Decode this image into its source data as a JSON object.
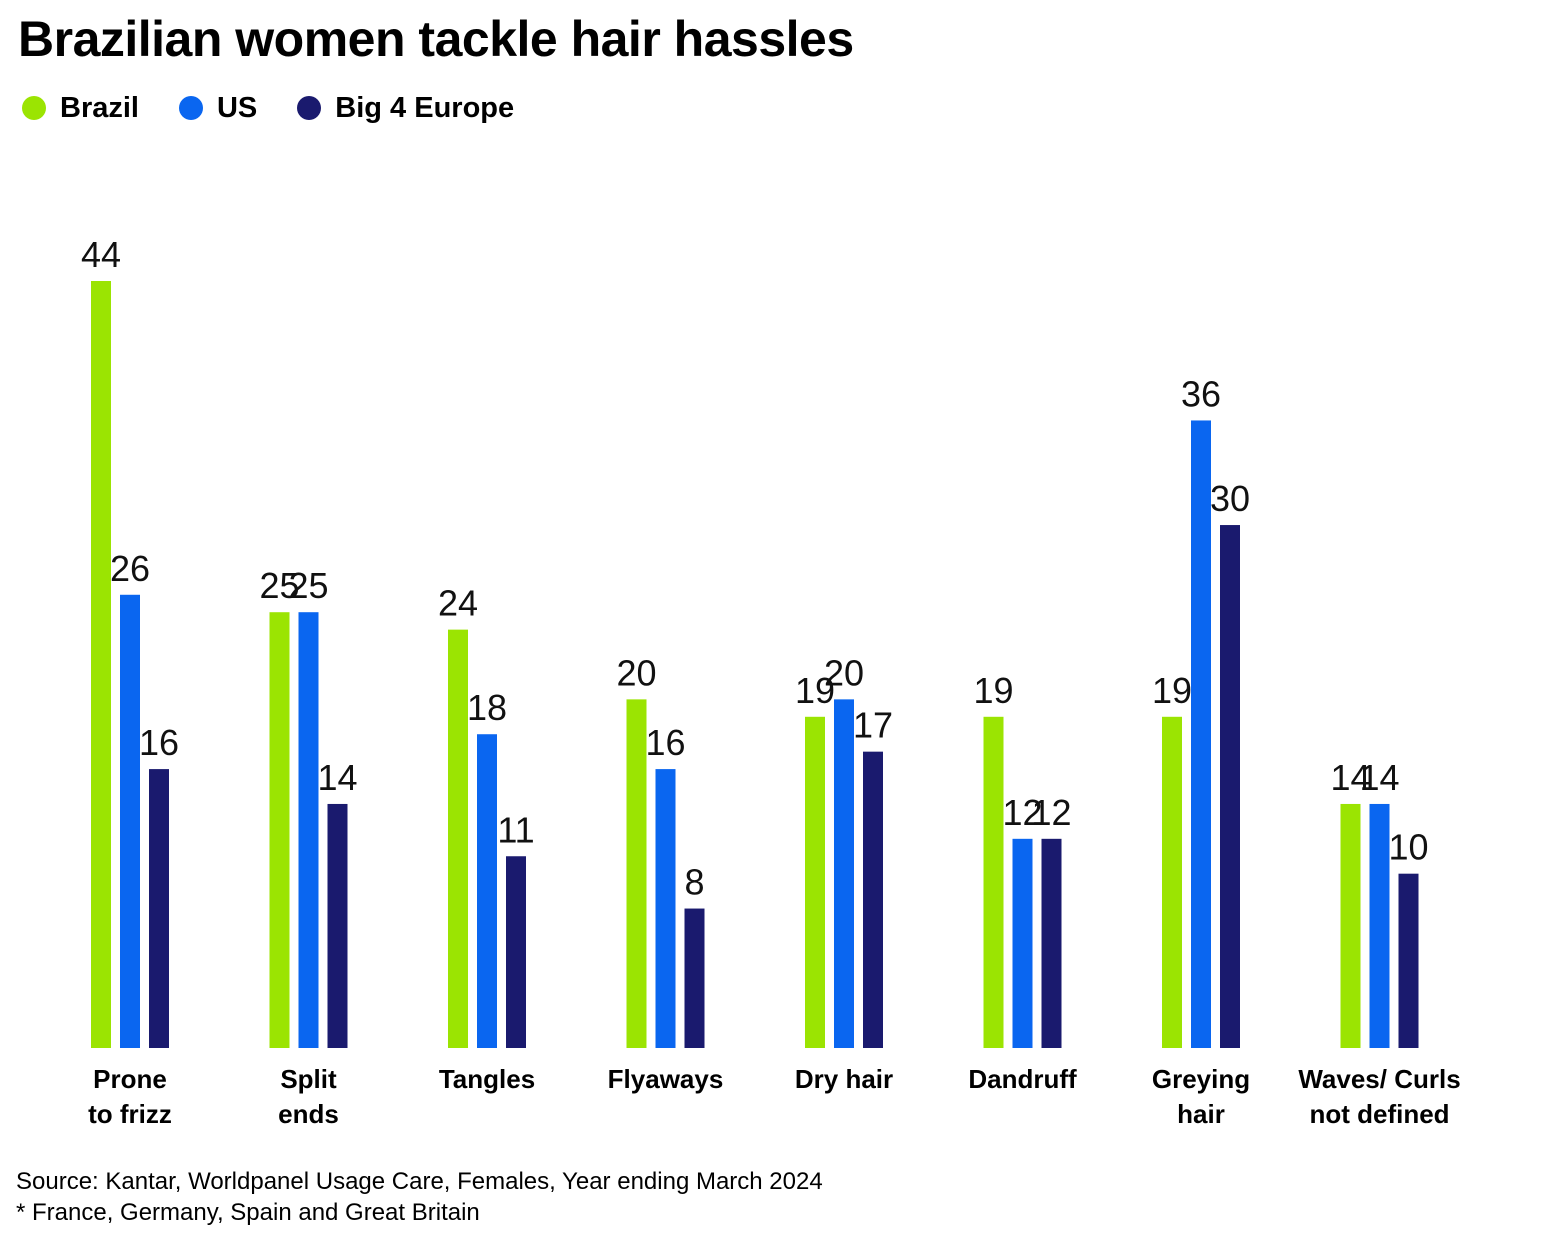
{
  "chart_data": {
    "type": "bar",
    "title": "Brazilian women tackle hair hassles",
    "categories": [
      [
        "Prone",
        "to frizz"
      ],
      [
        "Split",
        "ends"
      ],
      [
        "Tangles"
      ],
      [
        "Flyaways"
      ],
      [
        "Dry hair"
      ],
      [
        "Dandruff"
      ],
      [
        "Greying",
        "hair"
      ],
      [
        "Waves/ Curls",
        "not defined"
      ]
    ],
    "series": [
      {
        "name": "Brazil",
        "color": "#9be402",
        "values": [
          44,
          25,
          24,
          20,
          19,
          19,
          19,
          14
        ]
      },
      {
        "name": "US",
        "color": "#0a66f0",
        "values": [
          26,
          25,
          18,
          16,
          20,
          12,
          36,
          14
        ]
      },
      {
        "name": "Big 4 Europe",
        "color": "#1a1a6e",
        "values": [
          16,
          14,
          11,
          8,
          17,
          12,
          30,
          10
        ]
      }
    ],
    "ylim": [
      0,
      44
    ],
    "grid": false,
    "legend_position": "top-left",
    "data_labels": true
  },
  "source": "Source: Kantar, Worldpanel Usage Care, Females, Year ending March 2024",
  "footnote": "* France, Germany, Spain and Great Britain"
}
